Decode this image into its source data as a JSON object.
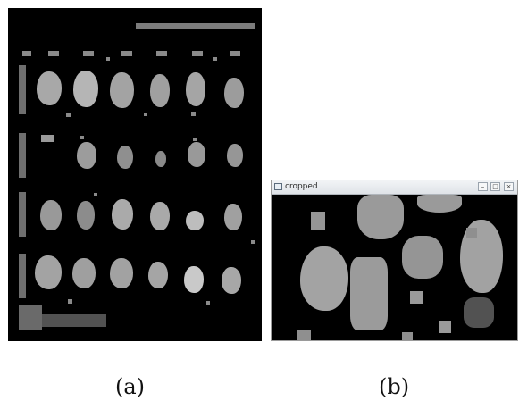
{
  "caption_a": "(a)",
  "caption_b": "(b)",
  "window": {
    "title": "cropped"
  },
  "icons": {
    "app": "window-app-icon",
    "minimize": "minimize-icon",
    "maximize": "maximize-icon",
    "close": "close-icon"
  },
  "colors": {
    "background": "#000000",
    "object": "#9a9a9a",
    "frame": "#ffffff"
  }
}
